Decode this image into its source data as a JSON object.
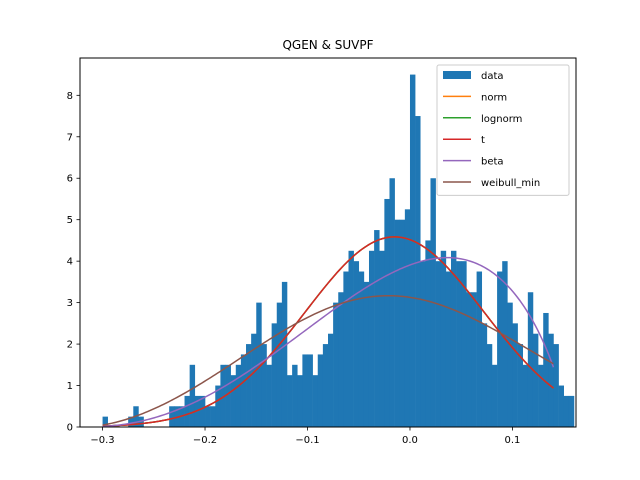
{
  "chart_data": {
    "type": "histogram",
    "title": "QGEN & SUVPF",
    "xlabel": "",
    "ylabel": "",
    "xlim": [
      -0.322,
      0.162
    ],
    "ylim": [
      0,
      8.9
    ],
    "xticks": [
      -0.3,
      -0.2,
      -0.1,
      0.0,
      0.1
    ],
    "xtick_labels": [
      "−0.3",
      "−0.2",
      "−0.1",
      "0.0",
      "0.1"
    ],
    "yticks": [
      0,
      1,
      2,
      3,
      4,
      5,
      6,
      7,
      8
    ],
    "ytick_labels": [
      "0",
      "1",
      "2",
      "3",
      "4",
      "5",
      "6",
      "7",
      "8"
    ],
    "grid": false,
    "legend_position": "top-right",
    "histogram": {
      "name": "data",
      "color": "#1f77b4",
      "bin_start": -0.3,
      "bin_width": 0.005,
      "heights": [
        0.25,
        0,
        0,
        0,
        0,
        0.25,
        0.5,
        0.25,
        0,
        0,
        0,
        0,
        0,
        0.5,
        0.5,
        0.5,
        0.75,
        1.5,
        0.75,
        0.75,
        0.5,
        0.5,
        1.0,
        1.5,
        1.5,
        1.25,
        1.5,
        1.75,
        2.0,
        2.25,
        3.0,
        2.0,
        1.5,
        2.5,
        3.0,
        3.5,
        1.25,
        1.5,
        1.25,
        1.75,
        1.75,
        1.25,
        1.75,
        2.0,
        2.25,
        3.0,
        3.25,
        3.75,
        4.25,
        4.0,
        3.75,
        3.5,
        4.25,
        4.75,
        4.25,
        5.5,
        6.0,
        5.0,
        5.0,
        5.25,
        8.5,
        7.5,
        4.0,
        4.5,
        6.0,
        4.0,
        4.25,
        3.75,
        4.25,
        4.0,
        4.0,
        3.25,
        3.25,
        3.75,
        2.5,
        2.0,
        1.5,
        3.75,
        4.0,
        3.0,
        2.5,
        2.0,
        1.5,
        3.25,
        2.25,
        1.5,
        2.75,
        2.25,
        2.0,
        1.0,
        0.75,
        0.75
      ]
    },
    "series": [
      {
        "name": "norm",
        "color": "#ff7f0e",
        "type": "normal",
        "mu": -0.015,
        "sigma": 0.087
      },
      {
        "name": "lognorm",
        "color": "#2ca02c",
        "type": "normal",
        "mu": -0.015,
        "sigma": 0.087
      },
      {
        "name": "t",
        "color": "#d62728",
        "type": "normal",
        "mu": -0.015,
        "sigma": 0.087
      },
      {
        "name": "beta",
        "color": "#9467bd",
        "type": "beta",
        "a": 3.4,
        "b": 1.8,
        "loc": -0.32,
        "scale": 0.475
      },
      {
        "name": "weibull_min",
        "color": "#8c564b",
        "type": "weibull",
        "c": 2.8,
        "loc": -0.32,
        "scale": 0.35
      }
    ],
    "curve_x_range": [
      -0.3,
      0.14
    ]
  }
}
